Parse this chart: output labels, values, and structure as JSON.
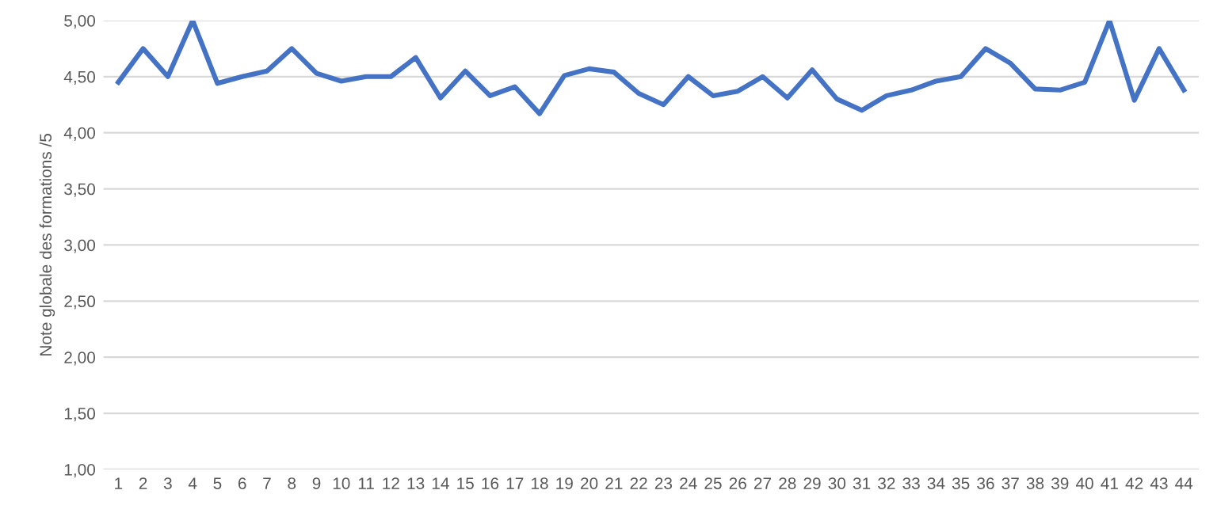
{
  "chart_data": {
    "type": "line",
    "ylabel": "Note globale des formations /5",
    "categories": [
      "1",
      "2",
      "3",
      "4",
      "5",
      "6",
      "7",
      "8",
      "9",
      "10",
      "11",
      "12",
      "13",
      "14",
      "15",
      "16",
      "17",
      "18",
      "19",
      "20",
      "21",
      "22",
      "23",
      "24",
      "25",
      "26",
      "27",
      "28",
      "29",
      "30",
      "31",
      "32",
      "33",
      "34",
      "35",
      "36",
      "37",
      "38",
      "39",
      "40",
      "41",
      "42",
      "43",
      "44"
    ],
    "series": [
      {
        "color": "#4472c4",
        "values": [
          4.45,
          4.75,
          4.5,
          5.0,
          4.44,
          4.5,
          4.55,
          4.75,
          4.53,
          4.46,
          4.5,
          4.5,
          4.67,
          4.31,
          4.55,
          4.33,
          4.41,
          4.17,
          4.51,
          4.57,
          4.54,
          4.35,
          4.25,
          4.5,
          4.33,
          4.37,
          4.5,
          4.31,
          4.56,
          4.3,
          4.2,
          4.33,
          4.38,
          4.46,
          4.5,
          4.75,
          4.62,
          4.39,
          4.38,
          4.45,
          5.0,
          4.29,
          4.75,
          4.38
        ]
      }
    ],
    "ylim": [
      1,
      5
    ],
    "yticks": [
      {
        "value": 1,
        "label": "1,00"
      },
      {
        "value": 1.5,
        "label": "1,50"
      },
      {
        "value": 2,
        "label": "2,00"
      },
      {
        "value": 2.5,
        "label": "2,50"
      },
      {
        "value": 3,
        "label": "3,00"
      },
      {
        "value": 3.5,
        "label": "3,50"
      },
      {
        "value": 4,
        "label": "4,00"
      },
      {
        "value": 4.5,
        "label": "4,50"
      },
      {
        "value": 5,
        "label": "5,00"
      }
    ],
    "grid": "y",
    "marker": "none",
    "line_style": "solid",
    "legend": false
  }
}
